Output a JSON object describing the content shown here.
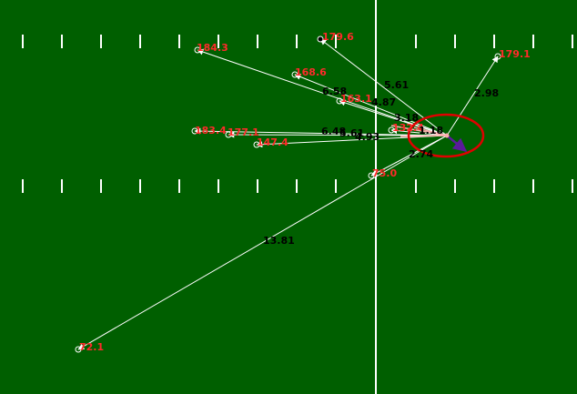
{
  "colors": {
    "field": "#005f00",
    "yard_marks": "#ffffff",
    "midline": "#ffffff",
    "route": "#ffffff",
    "speed_label": "#ff2a2a",
    "distance_label": "#000000",
    "qb_circle": "#e00000",
    "qb_vector": "#5a1a9a"
  },
  "targets": [
    {
      "id": "t1",
      "speed": "179.6",
      "distance": "5.61"
    },
    {
      "id": "t2",
      "speed": "179.1",
      "distance": "2.98"
    },
    {
      "id": "t3",
      "speed": "184.3",
      "distance": "6.58"
    },
    {
      "id": "t4",
      "speed": "168.6",
      "distance": "4.87"
    },
    {
      "id": "t5",
      "speed": "163.1",
      "distance": "3.18"
    },
    {
      "id": "t6",
      "speed": "183.4",
      "distance": "6.48"
    },
    {
      "id": "t7",
      "speed": "177.1",
      "distance": "5.61"
    },
    {
      "id": "t8",
      "speed": "147.4",
      "distance": "4.93"
    },
    {
      "id": "t9",
      "speed": "132.4",
      "distance": "1.18"
    },
    {
      "id": "t10",
      "speed": "75.0",
      "distance": "2.74"
    },
    {
      "id": "t11",
      "speed": "72.1",
      "distance": "13.81"
    }
  ]
}
